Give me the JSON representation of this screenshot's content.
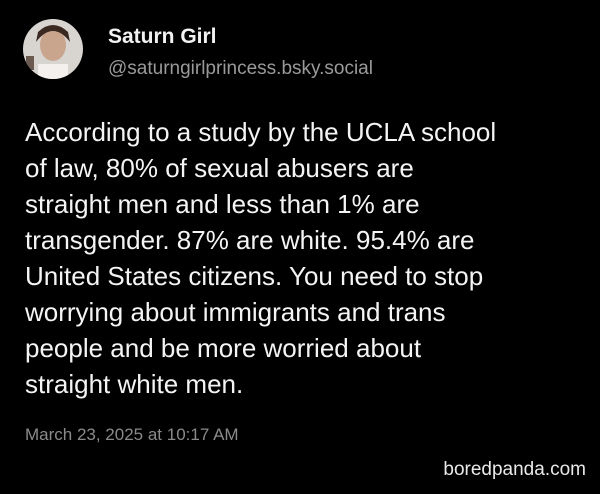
{
  "post": {
    "author": {
      "name": "Saturn Girl",
      "handle": "@saturngirlprincess.bsky.social"
    },
    "body_lines": [
      "According to a study by the UCLA school",
      "of law, 80% of sexual abusers are",
      "straight men and less than 1% are",
      "transgender. 87% are white. 95.4% are",
      "United States citizens. You need to stop",
      "worrying about immigrants and trans",
      "people and be more worried about",
      "straight white men."
    ],
    "timestamp": "March 23, 2025 at 10:17 AM"
  },
  "watermark": "boredpanda.com"
}
